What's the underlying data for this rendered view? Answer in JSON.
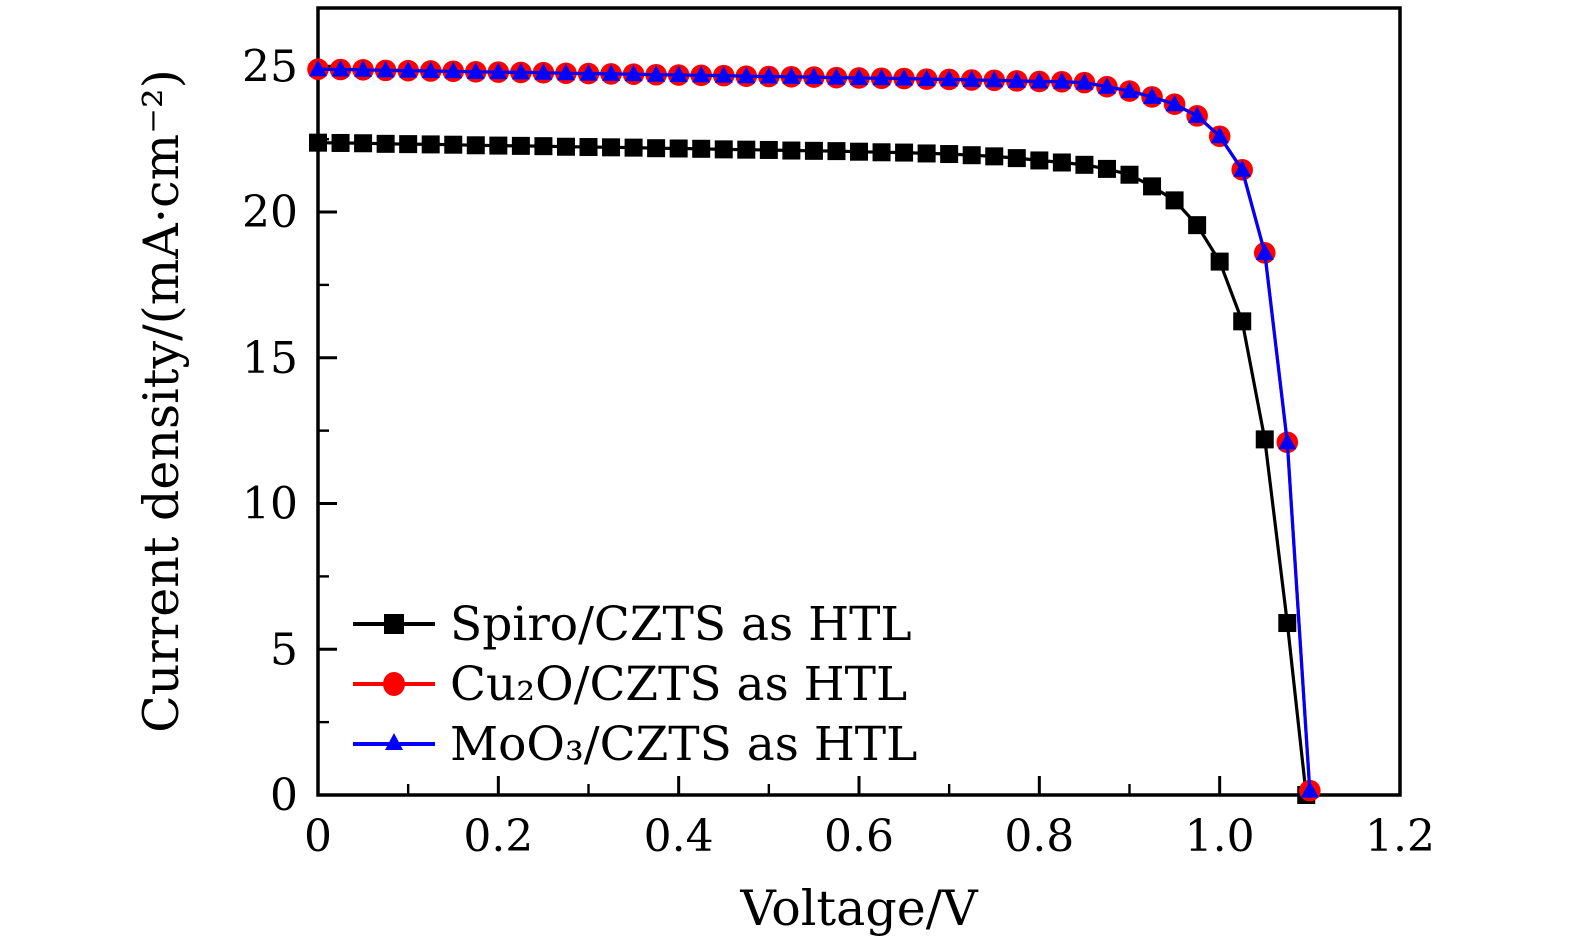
{
  "chart_data": {
    "type": "line",
    "title": "",
    "xlabel": "Voltage/V",
    "ylabel": "Current density/(mA·cm⁻²)",
    "xlim": [
      0,
      1.2
    ],
    "ylim": [
      0,
      27
    ],
    "grid": false,
    "legend_position": "lower-left",
    "x_major_ticks": [
      0,
      0.2,
      0.4,
      0.6,
      0.8,
      1.0,
      1.2
    ],
    "x_major_tick_labels": [
      "0",
      "0.2",
      "0.4",
      "0.6",
      "0.8",
      "1.0",
      "1.2"
    ],
    "x_minor_ticks": [
      0.1,
      0.3,
      0.5,
      0.7,
      0.9,
      1.1
    ],
    "y_major_ticks": [
      0,
      5,
      10,
      15,
      20,
      25
    ],
    "y_major_tick_labels": [
      "0",
      "5",
      "10",
      "15",
      "20",
      "25"
    ],
    "y_minor_ticks": [
      2.5,
      7.5,
      12.5,
      17.5,
      22.5
    ],
    "colors": {
      "axis": "#000000",
      "background": "#ffffff"
    },
    "series": [
      {
        "id": "spiro",
        "name": "Spiro/CZTS as HTL",
        "color": "#000000",
        "marker": "square",
        "x": [
          0,
          0.025,
          0.05,
          0.075,
          0.1,
          0.125,
          0.15,
          0.175,
          0.2,
          0.225,
          0.25,
          0.275,
          0.3,
          0.325,
          0.35,
          0.375,
          0.4,
          0.425,
          0.45,
          0.475,
          0.5,
          0.525,
          0.55,
          0.575,
          0.6,
          0.625,
          0.65,
          0.675,
          0.7,
          0.725,
          0.75,
          0.775,
          0.8,
          0.825,
          0.85,
          0.875,
          0.9,
          0.925,
          0.95,
          0.975,
          1.0,
          1.025,
          1.05,
          1.075,
          1.096
        ],
        "y": [
          22.38,
          22.37,
          22.36,
          22.34,
          22.33,
          22.32,
          22.31,
          22.29,
          22.28,
          22.27,
          22.26,
          22.24,
          22.23,
          22.22,
          22.21,
          22.19,
          22.18,
          22.17,
          22.15,
          22.14,
          22.13,
          22.11,
          22.1,
          22.09,
          22.07,
          22.05,
          22.04,
          22.01,
          21.99,
          21.95,
          21.91,
          21.85,
          21.77,
          21.7,
          21.62,
          21.48,
          21.28,
          20.88,
          20.4,
          19.55,
          18.3,
          16.25,
          12.2,
          5.9,
          0.0
        ]
      },
      {
        "id": "cu2o",
        "name": "Cu₂O/CZTS as HTL",
        "color": "#ff0000",
        "marker": "circle",
        "x": [
          0,
          0.025,
          0.05,
          0.075,
          0.1,
          0.125,
          0.15,
          0.175,
          0.2,
          0.225,
          0.25,
          0.275,
          0.3,
          0.325,
          0.35,
          0.375,
          0.4,
          0.425,
          0.45,
          0.475,
          0.5,
          0.525,
          0.55,
          0.575,
          0.6,
          0.625,
          0.65,
          0.675,
          0.7,
          0.725,
          0.75,
          0.775,
          0.8,
          0.825,
          0.85,
          0.875,
          0.9,
          0.925,
          0.95,
          0.975,
          1.0,
          1.025,
          1.05,
          1.075,
          1.1
        ],
        "y": [
          24.9,
          24.89,
          24.88,
          24.86,
          24.85,
          24.84,
          24.83,
          24.81,
          24.8,
          24.79,
          24.78,
          24.76,
          24.75,
          24.74,
          24.73,
          24.71,
          24.7,
          24.69,
          24.68,
          24.66,
          24.65,
          24.64,
          24.63,
          24.61,
          24.6,
          24.59,
          24.58,
          24.56,
          24.55,
          24.53,
          24.52,
          24.5,
          24.48,
          24.47,
          24.44,
          24.3,
          24.15,
          23.95,
          23.7,
          23.3,
          22.6,
          21.45,
          18.6,
          12.1,
          0.15
        ]
      },
      {
        "id": "moo3",
        "name": "MoO₃/CZTS as HTL",
        "color": "#0000ff",
        "marker": "triangle",
        "x": [
          0,
          0.025,
          0.05,
          0.075,
          0.1,
          0.125,
          0.15,
          0.175,
          0.2,
          0.225,
          0.25,
          0.275,
          0.3,
          0.325,
          0.35,
          0.375,
          0.4,
          0.425,
          0.45,
          0.475,
          0.5,
          0.525,
          0.55,
          0.575,
          0.6,
          0.625,
          0.65,
          0.675,
          0.7,
          0.725,
          0.75,
          0.775,
          0.8,
          0.825,
          0.85,
          0.875,
          0.9,
          0.925,
          0.95,
          0.975,
          1.0,
          1.025,
          1.05,
          1.075,
          1.1
        ],
        "y": [
          24.9,
          24.89,
          24.88,
          24.86,
          24.85,
          24.84,
          24.83,
          24.81,
          24.8,
          24.79,
          24.78,
          24.76,
          24.75,
          24.74,
          24.73,
          24.71,
          24.7,
          24.69,
          24.68,
          24.66,
          24.65,
          24.64,
          24.63,
          24.61,
          24.6,
          24.59,
          24.58,
          24.56,
          24.55,
          24.53,
          24.52,
          24.5,
          24.48,
          24.47,
          24.44,
          24.3,
          24.15,
          23.95,
          23.7,
          23.3,
          22.6,
          21.45,
          18.6,
          12.1,
          0.15
        ]
      }
    ]
  }
}
